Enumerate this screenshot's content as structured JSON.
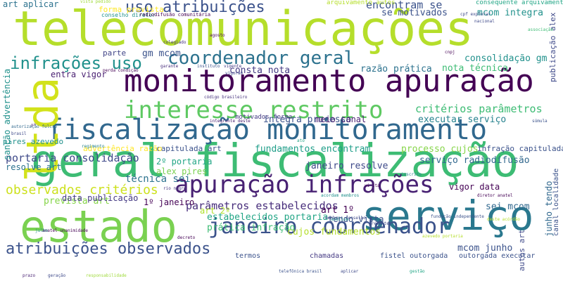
{
  "cloud": {
    "words": [
      {
        "text": "telecomunicações",
        "color": "#b5de2b"
      },
      {
        "text": "geral fiscalização",
        "color": "#3dbc74"
      },
      {
        "text": "monitoramento apuração",
        "color": "#440154"
      },
      {
        "text": "fiscalização monitoramento",
        "color": "#31688e"
      },
      {
        "text": "serviço",
        "color": "#2a788e"
      },
      {
        "text": "estado",
        "color": "#7ad151"
      },
      {
        "text": "ltda",
        "color": "#d2e21b"
      },
      {
        "text": "interesse restrito",
        "color": "#5ec962"
      },
      {
        "text": "apuração infrações",
        "color": "#482173"
      },
      {
        "text": "janeiro coordenador",
        "color": "#3b528b"
      },
      {
        "text": "coordenador geral",
        "color": "#2c728e"
      },
      {
        "text": "uso atribuições",
        "color": "#3b528b"
      },
      {
        "text": "infrações uso",
        "color": "#21918c"
      },
      {
        "text": "atribuições observados",
        "color": "#3b528b"
      },
      {
        "text": "observados critérios",
        "color": "#cde11d"
      },
      {
        "text": "critérios parâmetros",
        "color": "#3dbc74"
      },
      {
        "text": "parâmetros estabelecidos",
        "color": "#472d7b"
      },
      {
        "text": "encontram se",
        "color": "#3b528b"
      },
      {
        "text": "portaria consolidação",
        "color": "#3e4989"
      },
      {
        "text": "estabelecidos portaria",
        "color": "#21a585"
      },
      {
        "text": "técnica sei",
        "color": "#2c728e"
      },
      {
        "text": "mcom integra",
        "color": "#21918c"
      },
      {
        "text": "consta nota",
        "color": "#443983"
      },
      {
        "text": "nota técnica",
        "color": "#3dbc74"
      },
      {
        "text": "integra processo",
        "color": "#3b528b"
      },
      {
        "text": "executar serviço",
        "color": "#26828e"
      },
      {
        "text": "consolidação gm",
        "color": "#21918c"
      },
      {
        "text": "fundamentos encontram",
        "color": "#1f9e89"
      },
      {
        "text": "janeiro resolve",
        "color": "#3e4989"
      },
      {
        "text": "processo cujos",
        "color": "#86d549"
      },
      {
        "text": "serviço radiodifusão",
        "color": "#31688e"
      },
      {
        "text": "prevista art",
        "color": "#86d549"
      },
      {
        "text": "sei mcom",
        "color": "#31688e"
      },
      {
        "text": "mcom junho",
        "color": "#3b528b"
      },
      {
        "text": "prática infração",
        "color": "#3dbc74"
      },
      {
        "text": "cujos fundamentos",
        "color": "#b5de2b"
      },
      {
        "text": "gm mcom",
        "color": "#3b528b"
      },
      {
        "text": "razão prática",
        "color": "#2c728e"
      },
      {
        "text": "meio canal",
        "color": "#481f71"
      },
      {
        "text": "resolve art",
        "color": "#2c728e"
      },
      {
        "text": "data publicação",
        "color": "#443983"
      },
      {
        "text": "art aplicar",
        "color": "#2c728e"
      },
      {
        "text": "forma prevista",
        "color": "#fde725"
      },
      {
        "text": "se motivados",
        "color": "#3b528b"
      },
      {
        "text": "infração capitulada",
        "color": "#3b528b"
      },
      {
        "text": "capitulada art",
        "color": "#3b528b"
      },
      {
        "text": "vigor data",
        "color": "#440154"
      },
      {
        "text": "art 1º",
        "color": "#440154"
      },
      {
        "text": "art 2º",
        "color": "#ade028"
      },
      {
        "text": "1º janeiro",
        "color": "#440154"
      },
      {
        "text": "2º portaria",
        "color": "#21a585"
      },
      {
        "text": "alex pires",
        "color": "#7ad151"
      },
      {
        "text": "entra vigor",
        "color": "#481f71"
      },
      {
        "text": "motivados forma",
        "color": "#443983"
      },
      {
        "text": "advertência razão",
        "color": "#fde725"
      },
      {
        "text": "pires azevedo",
        "color": "#21918c"
      },
      {
        "text": "parte",
        "color": "#414487"
      },
      {
        "text": "tendo vista",
        "color": "#3b528b"
      },
      {
        "text": "junho tendo",
        "color": "#31688e"
      },
      {
        "text": "sanção advertência",
        "color": "#21918c"
      },
      {
        "text": "autos art",
        "color": "#3e4989"
      },
      {
        "text": "termos",
        "color": "#3b528b"
      },
      {
        "text": "chamadas",
        "color": "#443983"
      },
      {
        "text": "fistel outorgada",
        "color": "#3b528b"
      },
      {
        "text": "outorgada executar",
        "color": "#3b528b"
      },
      {
        "text": "publicação alex",
        "color": "#3e4989"
      },
      {
        "text": "canal localidade",
        "color": "#3b528b"
      },
      {
        "text": "consequente arquivamento",
        "color": "#21a585"
      },
      {
        "text": "arquivamento autos",
        "color": "#b5de2b"
      },
      {
        "text": "conselho diretor",
        "color": "#21918c"
      },
      {
        "text": "radiodifusão comunitária",
        "color": "#440154"
      },
      {
        "text": "vista pedido",
        "color": "#9fda3a"
      },
      {
        "text": "cpf explorar",
        "color": "#3e4989"
      },
      {
        "text": "código brasileiro",
        "color": "#46337e"
      },
      {
        "text": "integrante deste",
        "color": "#482173"
      },
      {
        "text": "brasil",
        "color": "#3e4989"
      },
      {
        "text": "autorização fulcro",
        "color": "#31688e"
      },
      {
        "text": "diretor anatel",
        "color": "#440154"
      },
      {
        "text": "anatel unanimidade",
        "color": "#440154"
      },
      {
        "text": "acordam membros",
        "color": "#21918c"
      },
      {
        "text": "membros conselho",
        "color": "#3e4989"
      },
      {
        "text": "deste acórdão",
        "color": "#b5de2b"
      },
      {
        "text": "súmula",
        "color": "#3b528b"
      },
      {
        "text": "decreto",
        "color": "#440154"
      },
      {
        "text": "análise",
        "color": "#21918c"
      },
      {
        "text": "presente",
        "color": "#3e4989"
      },
      {
        "text": "rio negro",
        "color": "#46337e"
      },
      {
        "text": "vi ita",
        "color": "#440154"
      },
      {
        "text": "inscrito",
        "color": "#26828e"
      },
      {
        "text": "instituto",
        "color": "#3b528b"
      },
      {
        "text": "vigente",
        "color": "#443983"
      },
      {
        "text": "garante",
        "color": "#472d7b"
      },
      {
        "text": "nacional",
        "color": "#3e4989"
      },
      {
        "text": "cnpj",
        "color": "#440154"
      },
      {
        "text": "colegiado",
        "color": "#46337e"
      },
      {
        "text": "agosto",
        "color": "#440154"
      },
      {
        "text": "julho",
        "color": "#21918c"
      },
      {
        "text": "fundação independente",
        "color": "#3b528b"
      },
      {
        "text": "telefônica brasil",
        "color": "#3b528b"
      },
      {
        "text": "perda condição",
        "color": "#440154"
      },
      {
        "text": "associação",
        "color": "#3dbc74"
      },
      {
        "text": "regimento",
        "color": "#26828e"
      },
      {
        "text": "vigoram",
        "color": "#3e4989"
      },
      {
        "text": "aplicar",
        "color": "#3e4989"
      },
      {
        "text": "azevedo portaria",
        "color": "#b5de2b"
      },
      {
        "text": "gestão",
        "color": "#21a585"
      },
      {
        "text": "prazo",
        "color": "#482173"
      },
      {
        "text": "geração",
        "color": "#3e4989"
      },
      {
        "text": "responsabilidade",
        "color": "#9fda3a"
      },
      {
        "text": "ato",
        "color": "#21a585"
      },
      {
        "text": "nº",
        "color": "#482173"
      }
    ]
  }
}
